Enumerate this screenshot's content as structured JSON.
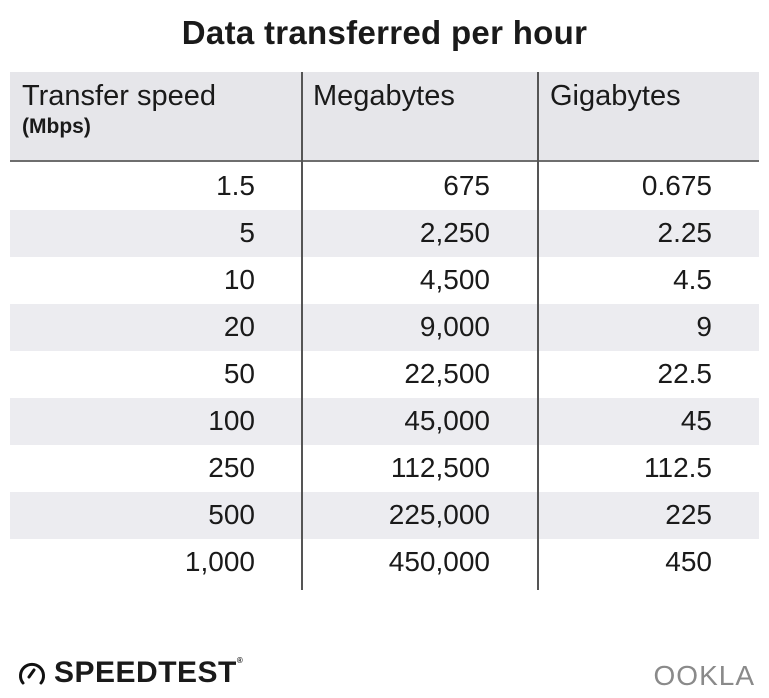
{
  "chart_data": {
    "type": "table",
    "title": "Data transferred per hour",
    "columns": [
      {
        "label": "Transfer speed",
        "sublabel": "(Mbps)"
      },
      {
        "label": "Megabytes"
      },
      {
        "label": "Gigabytes"
      }
    ],
    "rows": [
      [
        "1.5",
        "675",
        "0.675"
      ],
      [
        "5",
        "2,250",
        "2.25"
      ],
      [
        "10",
        "4,500",
        "4.5"
      ],
      [
        "20",
        "9,000",
        "9"
      ],
      [
        "50",
        "22,500",
        "22.5"
      ],
      [
        "100",
        "45,000",
        "45"
      ],
      [
        "250",
        "112,500",
        "112.5"
      ],
      [
        "500",
        "225,000",
        "225"
      ],
      [
        "1,000",
        "450,000",
        "450"
      ]
    ],
    "colors": {
      "header_bg": "#e6e6ea",
      "alt_row_bg": "#ececf0",
      "text": "#1a1a1a"
    }
  },
  "footer": {
    "brand": "SPEEDTEST",
    "brand_mark": "®",
    "brand_icon": "speedometer-icon",
    "partner_logo": "OOKLA"
  }
}
